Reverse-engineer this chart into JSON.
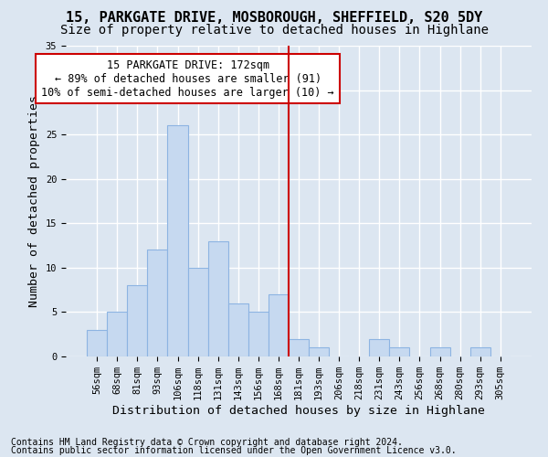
{
  "title": "15, PARKGATE DRIVE, MOSBOROUGH, SHEFFIELD, S20 5DY",
  "subtitle": "Size of property relative to detached houses in Highlane",
  "xlabel": "Distribution of detached houses by size in Highlane",
  "ylabel": "Number of detached properties",
  "footer1": "Contains HM Land Registry data © Crown copyright and database right 2024.",
  "footer2": "Contains public sector information licensed under the Open Government Licence v3.0.",
  "bin_labels": [
    "56sqm",
    "68sqm",
    "81sqm",
    "93sqm",
    "106sqm",
    "118sqm",
    "131sqm",
    "143sqm",
    "156sqm",
    "168sqm",
    "181sqm",
    "193sqm",
    "206sqm",
    "218sqm",
    "231sqm",
    "243sqm",
    "256sqm",
    "268sqm",
    "280sqm",
    "293sqm",
    "305sqm"
  ],
  "bar_heights": [
    3,
    5,
    8,
    12,
    26,
    10,
    13,
    6,
    5,
    7,
    2,
    1,
    0,
    0,
    2,
    1,
    0,
    1,
    0,
    1,
    0
  ],
  "bar_color": "#c6d9f0",
  "bar_edge_color": "#8db4e2",
  "bar_width": 1.0,
  "vline_x": 9.5,
  "vline_color": "#cc0000",
  "annotation_text": "15 PARKGATE DRIVE: 172sqm\n← 89% of detached houses are smaller (91)\n10% of semi-detached houses are larger (10) →",
  "annotation_box_color": "#cc0000",
  "ylim": [
    0,
    35
  ],
  "yticks": [
    0,
    5,
    10,
    15,
    20,
    25,
    30,
    35
  ],
  "background_color": "#dce6f1",
  "grid_color": "#ffffff",
  "title_fontsize": 11,
  "subtitle_fontsize": 10,
  "xlabel_fontsize": 9.5,
  "ylabel_fontsize": 9.5,
  "tick_fontsize": 7.5,
  "annotation_fontsize": 8.5,
  "footer_fontsize": 7
}
